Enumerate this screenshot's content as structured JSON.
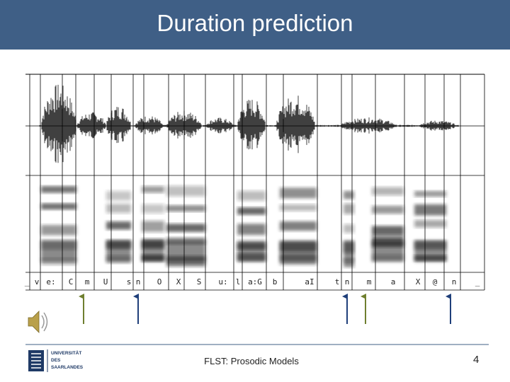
{
  "header": {
    "title": "Duration prediction"
  },
  "figure": {
    "phonemes": [
      "_",
      "v",
      "e:",
      "C",
      "m",
      "U",
      "s",
      "n",
      "O",
      "X",
      "S",
      "u:",
      "l",
      "a:G",
      "b",
      "aI",
      "t",
      "n",
      "m",
      "a",
      "X",
      "@",
      "n",
      "_"
    ]
  },
  "footer": {
    "text": "FLST: Prosodic Models",
    "page": 4,
    "logo": [
      "UNIVERSITÄT",
      "DES",
      "SAARLANDES"
    ]
  }
}
